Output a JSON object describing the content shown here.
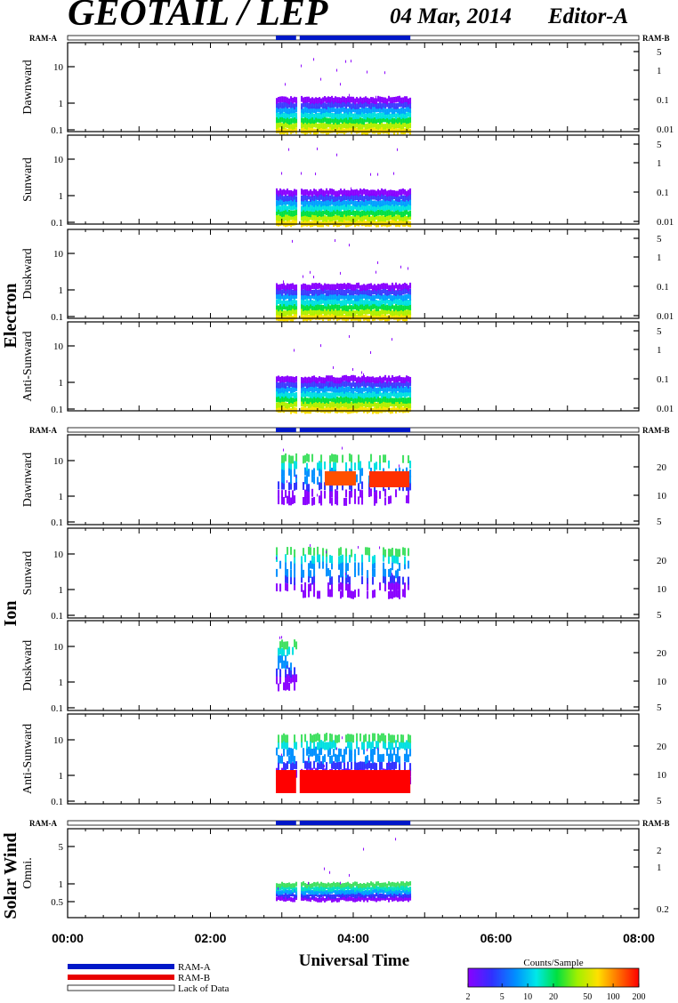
{
  "header": {
    "title": "GEOTAIL / LEP",
    "date": "04 Mar, 2014",
    "editor": "Editor-A"
  },
  "chart_data": [
    {
      "type": "heatmap",
      "group": "Electron",
      "ram_left": "RAM-A",
      "ram_right": "RAM-B",
      "xlim": [
        "00:00",
        "08:00"
      ],
      "data_span": [
        "02:55",
        "04:48"
      ],
      "data_gap": [
        "03:12",
        "03:15"
      ],
      "panels": [
        {
          "ylabel": "Dawnward",
          "yticks_left": [
            "10",
            "1",
            "0.1"
          ],
          "yticks_right": [
            "5",
            "1",
            "0.1",
            "0.01"
          ]
        },
        {
          "ylabel": "Sunward",
          "yticks_left": [
            "10",
            "1",
            "0.1"
          ],
          "yticks_right": [
            "5",
            "1",
            "0.1",
            "0.01"
          ]
        },
        {
          "ylabel": "Duskward",
          "yticks_left": [
            "10",
            "1",
            "0.1"
          ],
          "yticks_right": [
            "5",
            "1",
            "0.1",
            "0.01"
          ]
        },
        {
          "ylabel": "Anti-Sunward",
          "yticks_left": [
            "10",
            "1",
            "0.1"
          ],
          "yticks_right": [
            "5",
            "1",
            "0.1",
            "0.01"
          ]
        }
      ]
    },
    {
      "type": "heatmap",
      "group": "Ion",
      "ram_left": "RAM-A",
      "ram_right": "RAM-B",
      "xlim": [
        "00:00",
        "08:00"
      ],
      "data_span": [
        "02:55",
        "04:48"
      ],
      "data_gap": [
        "03:12",
        "03:15"
      ],
      "panels": [
        {
          "ylabel": "Dawnward",
          "yticks_left": [
            "10",
            "1",
            "0.1"
          ],
          "yticks_right": [
            "20",
            "10",
            "5"
          ]
        },
        {
          "ylabel": "Sunward",
          "yticks_left": [
            "10",
            "1",
            "0.1"
          ],
          "yticks_right": [
            "20",
            "10",
            "5"
          ]
        },
        {
          "ylabel": "Duskward",
          "yticks_left": [
            "10",
            "1",
            "0.1"
          ],
          "yticks_right": [
            "20",
            "10",
            "5"
          ]
        },
        {
          "ylabel": "Anti-Sunward",
          "yticks_left": [
            "10",
            "1",
            "0.1"
          ],
          "yticks_right": [
            "20",
            "10",
            "5"
          ]
        }
      ]
    },
    {
      "type": "heatmap",
      "group": "Solar Wind",
      "ram_left": "RAM-A",
      "ram_right": "RAM-B",
      "xlim": [
        "00:00",
        "08:00"
      ],
      "data_span": [
        "02:55",
        "04:48"
      ],
      "data_gap": [
        "03:12",
        "03:15"
      ],
      "panels": [
        {
          "ylabel": "Omni.",
          "yticks_left": [
            "5",
            "1",
            "0.5"
          ],
          "yticks_right": [
            "2",
            "1",
            "0.2"
          ]
        }
      ]
    }
  ],
  "xaxis": {
    "ticks": [
      "00:00",
      "02:00",
      "04:00",
      "06:00",
      "08:00"
    ],
    "label": "Universal Time"
  },
  "legend": {
    "items": [
      {
        "label": "RAM-A",
        "color": "#0018c8"
      },
      {
        "label": "RAM-B",
        "color": "#e80000"
      },
      {
        "label": "Lack of Data",
        "color": "#ffffff"
      }
    ]
  },
  "colorbar": {
    "title": "Counts/Sample",
    "ticks": [
      "2",
      "5",
      "10",
      "20",
      "50",
      "100",
      "200"
    ],
    "range": [
      2,
      200
    ],
    "scale": "log"
  }
}
